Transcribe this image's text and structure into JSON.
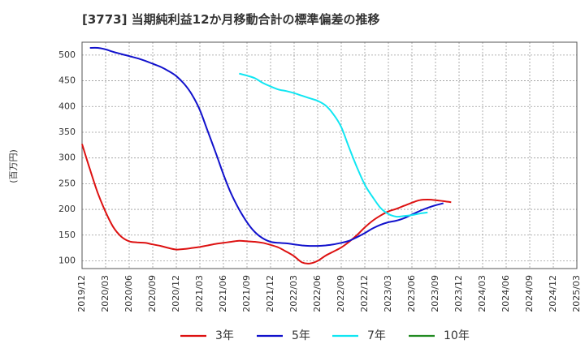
{
  "chart_data": {
    "type": "line",
    "title": "[3773]  当期純利益12か月移動合計の標準偏差の推移",
    "ylabel": "(百万円)",
    "xlabel": "",
    "ylim": [
      85,
      525
    ],
    "yticks": [
      100,
      150,
      200,
      250,
      300,
      350,
      400,
      450,
      500
    ],
    "xticks": [
      "2019/12",
      "2020/03",
      "2020/06",
      "2020/09",
      "2020/12",
      "2021/03",
      "2021/06",
      "2021/09",
      "2021/12",
      "2022/03",
      "2022/06",
      "2022/09",
      "2022/12",
      "2023/03",
      "2023/06",
      "2023/09",
      "2023/12",
      "2024/03",
      "2024/06",
      "2024/09",
      "2024/12",
      "2025/03"
    ],
    "grid": true,
    "legend_position": "bottom",
    "series": [
      {
        "name": "3年",
        "color": "#dd1111",
        "points": [
          [
            0,
            327
          ],
          [
            1,
            278
          ],
          [
            2,
            232
          ],
          [
            3,
            195
          ],
          [
            4,
            165
          ],
          [
            5,
            147
          ],
          [
            6,
            138
          ],
          [
            7,
            136
          ],
          [
            8,
            135
          ],
          [
            9,
            132
          ],
          [
            10,
            129
          ],
          [
            11,
            125
          ],
          [
            12,
            122
          ],
          [
            13,
            123
          ],
          [
            14,
            125
          ],
          [
            15,
            127
          ],
          [
            16,
            130
          ],
          [
            17,
            133
          ],
          [
            18,
            135
          ],
          [
            19,
            137
          ],
          [
            20,
            139
          ],
          [
            21,
            138
          ],
          [
            22,
            137
          ],
          [
            23,
            135
          ],
          [
            24,
            131
          ],
          [
            25,
            126
          ],
          [
            26,
            118
          ],
          [
            27,
            109
          ],
          [
            28,
            97
          ],
          [
            29,
            95
          ],
          [
            30,
            100
          ],
          [
            31,
            110
          ],
          [
            32,
            118
          ],
          [
            33,
            126
          ],
          [
            34,
            137
          ],
          [
            35,
            150
          ],
          [
            36,
            165
          ],
          [
            37,
            178
          ],
          [
            38,
            188
          ],
          [
            39,
            196
          ],
          [
            40,
            201
          ],
          [
            41,
            207
          ],
          [
            42,
            213
          ],
          [
            43,
            218
          ],
          [
            44,
            219
          ],
          [
            45,
            218
          ],
          [
            46,
            216
          ],
          [
            47,
            214
          ]
        ]
      },
      {
        "name": "5年",
        "color": "#1111cc",
        "points": [
          [
            1,
            514
          ],
          [
            2,
            514
          ],
          [
            3,
            511
          ],
          [
            4,
            506
          ],
          [
            5,
            502
          ],
          [
            6,
            498
          ],
          [
            7,
            494
          ],
          [
            8,
            489
          ],
          [
            9,
            483
          ],
          [
            10,
            477
          ],
          [
            11,
            469
          ],
          [
            12,
            459
          ],
          [
            13,
            444
          ],
          [
            14,
            423
          ],
          [
            15,
            393
          ],
          [
            16,
            352
          ],
          [
            17,
            311
          ],
          [
            18,
            268
          ],
          [
            19,
            230
          ],
          [
            20,
            200
          ],
          [
            21,
            175
          ],
          [
            22,
            156
          ],
          [
            23,
            144
          ],
          [
            24,
            137
          ],
          [
            25,
            135
          ],
          [
            26,
            134
          ],
          [
            27,
            132
          ],
          [
            28,
            130
          ],
          [
            29,
            129
          ],
          [
            30,
            129
          ],
          [
            31,
            130
          ],
          [
            32,
            132
          ],
          [
            33,
            135
          ],
          [
            34,
            139
          ],
          [
            35,
            146
          ],
          [
            36,
            154
          ],
          [
            37,
            163
          ],
          [
            38,
            170
          ],
          [
            39,
            175
          ],
          [
            40,
            178
          ],
          [
            41,
            183
          ],
          [
            42,
            190
          ],
          [
            43,
            197
          ],
          [
            44,
            203
          ],
          [
            45,
            208
          ],
          [
            46,
            212
          ]
        ]
      },
      {
        "name": "7年",
        "color": "#11e6f2",
        "points": [
          [
            20,
            464
          ],
          [
            21,
            460
          ],
          [
            22,
            455
          ],
          [
            23,
            446
          ],
          [
            24,
            439
          ],
          [
            25,
            433
          ],
          [
            26,
            430
          ],
          [
            27,
            426
          ],
          [
            28,
            421
          ],
          [
            29,
            416
          ],
          [
            30,
            411
          ],
          [
            31,
            402
          ],
          [
            32,
            385
          ],
          [
            33,
            360
          ],
          [
            34,
            320
          ],
          [
            35,
            282
          ],
          [
            36,
            248
          ],
          [
            37,
            224
          ],
          [
            38,
            203
          ],
          [
            39,
            191
          ],
          [
            40,
            186
          ],
          [
            41,
            187
          ],
          [
            42,
            189
          ],
          [
            43,
            192
          ],
          [
            44,
            194
          ]
        ]
      },
      {
        "name": "10年",
        "color": "#228b22",
        "points": []
      }
    ]
  }
}
